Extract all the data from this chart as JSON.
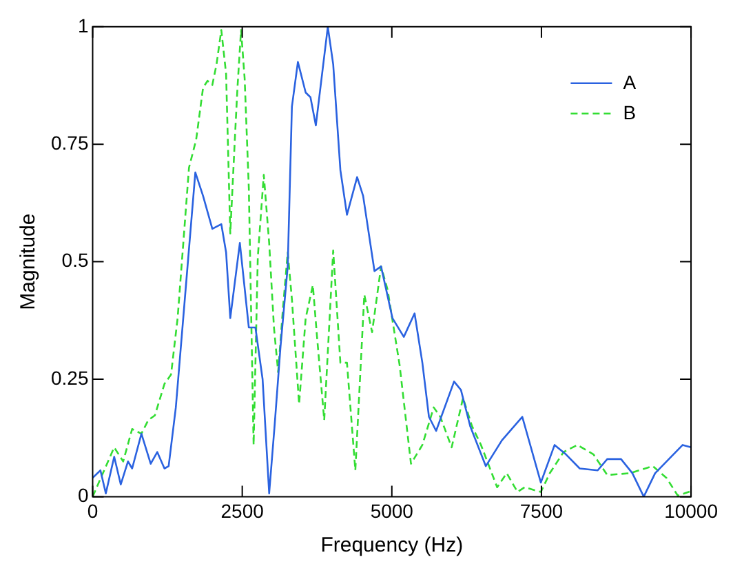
{
  "chart_data": {
    "type": "line",
    "xlabel": "Frequency (Hz)",
    "ylabel": "Magnitude",
    "xlim": [
      0,
      10000
    ],
    "xticks": [
      0,
      2500,
      5000,
      7500,
      10000
    ],
    "ylim": [
      0,
      1
    ],
    "yticks": [
      0,
      0.25,
      0.5,
      0.75,
      1
    ],
    "grid": false,
    "legend": "top right",
    "marker": "none",
    "series": [
      {
        "name": "A",
        "color": "#2a62e0",
        "line_style": "solid",
        "x": [
          0,
          130,
          220,
          360,
          470,
          590,
          660,
          815,
          970,
          1080,
          1200,
          1270,
          1390,
          1540,
          1716,
          1845,
          2000,
          2150,
          2230,
          2300,
          2460,
          2610,
          2720,
          2840,
          2950,
          3040,
          3140,
          3260,
          3330,
          3430,
          3560,
          3640,
          3730,
          3930,
          4020,
          4140,
          4250,
          4420,
          4520,
          4710,
          4820,
          5010,
          5200,
          5380,
          5510,
          5620,
          5740,
          6040,
          6155,
          6310,
          6570,
          6840,
          7180,
          7490,
          7720,
          7910,
          8140,
          8440,
          8600,
          8830,
          9020,
          9210,
          9400,
          9630,
          9860,
          10000
        ],
        "values": [
          0.04,
          0.056,
          0.007,
          0.085,
          0.026,
          0.075,
          0.06,
          0.134,
          0.07,
          0.095,
          0.06,
          0.065,
          0.19,
          0.42,
          0.69,
          0.64,
          0.57,
          0.58,
          0.52,
          0.38,
          0.54,
          0.36,
          0.36,
          0.25,
          0.007,
          0.15,
          0.32,
          0.49,
          0.83,
          0.925,
          0.86,
          0.85,
          0.79,
          1.0,
          0.92,
          0.695,
          0.6,
          0.68,
          0.64,
          0.48,
          0.49,
          0.38,
          0.34,
          0.39,
          0.285,
          0.17,
          0.14,
          0.245,
          0.227,
          0.15,
          0.065,
          0.12,
          0.17,
          0.03,
          0.11,
          0.09,
          0.06,
          0.056,
          0.08,
          0.08,
          0.05,
          0.0,
          0.05,
          0.08,
          0.11,
          0.105
        ]
      },
      {
        "name": "B",
        "color": "#33dd33",
        "line_style": "dashed",
        "x": [
          0,
          360,
          510,
          660,
          815,
          930,
          1040,
          1200,
          1310,
          1420,
          1610,
          1730,
          1845,
          1920,
          2000,
          2070,
          2150,
          2230,
          2300,
          2380,
          2420,
          2480,
          2540,
          2610,
          2690,
          2760,
          2860,
          2950,
          3030,
          3100,
          3180,
          3260,
          3330,
          3450,
          3560,
          3680,
          3750,
          3870,
          4020,
          4140,
          4250,
          4390,
          4540,
          4670,
          4820,
          4930,
          5130,
          5320,
          5510,
          5700,
          5810,
          6000,
          6190,
          6340,
          6490,
          6760,
          6920,
          7100,
          7220,
          7490,
          7640,
          7870,
          8100,
          8370,
          8600,
          8980,
          9130,
          9360,
          9590,
          9780,
          10000
        ],
        "values": [
          0,
          0.105,
          0.075,
          0.144,
          0.134,
          0.163,
          0.173,
          0.24,
          0.26,
          0.38,
          0.7,
          0.76,
          0.87,
          0.885,
          0.876,
          0.92,
          0.993,
          0.9,
          0.56,
          0.77,
          0.87,
          0.993,
          0.89,
          0.656,
          0.11,
          0.51,
          0.685,
          0.54,
          0.36,
          0.265,
          0.4,
          0.52,
          0.42,
          0.197,
          0.38,
          0.45,
          0.34,
          0.163,
          0.524,
          0.285,
          0.285,
          0.056,
          0.43,
          0.35,
          0.49,
          0.44,
          0.28,
          0.07,
          0.11,
          0.19,
          0.17,
          0.105,
          0.21,
          0.15,
          0.11,
          0.02,
          0.05,
          0.01,
          0.02,
          0.01,
          0.05,
          0.095,
          0.11,
          0.09,
          0.046,
          0.05,
          0.056,
          0.065,
          0.04,
          0.002,
          0.012
        ]
      }
    ]
  }
}
